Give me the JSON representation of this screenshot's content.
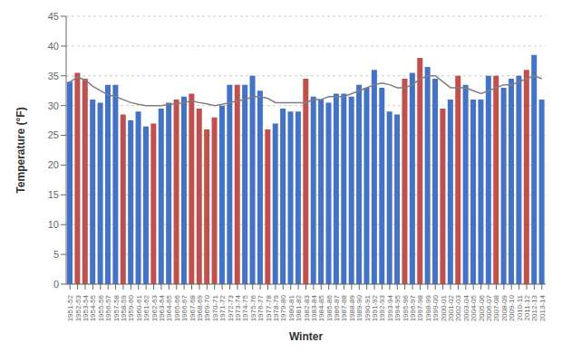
{
  "chart_data": {
    "type": "bar",
    "xlabel": "Winter",
    "ylabel": "Temperature (°F)",
    "categories": [
      "1951-52",
      "1952-53",
      "1953-54",
      "1954-55",
      "1955-56",
      "1956-57",
      "1957-58",
      "1958-59",
      "1959-60",
      "1960-61",
      "1961-62",
      "1962-63",
      "1963-64",
      "1964-65",
      "1965-66",
      "1966-67",
      "1967-68",
      "1968-69",
      "1969-70",
      "1970-71",
      "1971-72",
      "1972-73",
      "1973-74",
      "1974-75",
      "1975-76",
      "1976-77",
      "1977-78",
      "1978-79",
      "1979-80",
      "1980-81",
      "1981-82",
      "1982-83",
      "1983-84",
      "1984-85",
      "1985-86",
      "1986-87",
      "1987-88",
      "1988-89",
      "1989-90",
      "1990-91",
      "1991-92",
      "1992-93",
      "1993-94",
      "1994-95",
      "1995-96",
      "1996-97",
      "1997-98",
      "1998-99",
      "1999-00",
      "2000-01",
      "2001-02",
      "2002-03",
      "2003-04",
      "2004-05",
      "2005-06",
      "2006-07",
      "2007-08",
      "2008-09",
      "2009-10",
      "2010-11",
      "2011-12",
      "2012-13",
      "2013-14"
    ],
    "series": [
      {
        "type": "bar",
        "values": [
          34.0,
          35.5,
          34.5,
          31.0,
          30.5,
          33.5,
          33.5,
          28.5,
          27.5,
          29.0,
          26.5,
          27.0,
          29.5,
          30.5,
          31.0,
          31.5,
          32.0,
          29.5,
          26.0,
          28.0,
          30.0,
          33.5,
          33.5,
          33.5,
          35.0,
          32.5,
          26.0,
          27.0,
          29.5,
          29.0,
          29.0,
          34.5,
          31.5,
          31.0,
          30.5,
          32.0,
          32.0,
          31.5,
          33.5,
          33.0,
          36.0,
          33.0,
          29.0,
          28.5,
          34.5,
          35.5,
          38.0,
          36.5,
          34.5,
          29.5,
          31.0,
          35.0,
          33.5,
          31.0,
          31.0,
          35.0,
          35.0,
          33.0,
          34.5,
          35.0,
          36.0,
          38.5,
          31.0
        ],
        "colors": [
          "#4472C4",
          "#C0504D",
          "#C0504D",
          "#4472C4",
          "#4472C4",
          "#4472C4",
          "#4472C4",
          "#C0504D",
          "#4472C4",
          "#4472C4",
          "#4472C4",
          "#C0504D",
          "#4472C4",
          "#4472C4",
          "#C0504D",
          "#4472C4",
          "#C0504D",
          "#C0504D",
          "#C0504D",
          "#C0504D",
          "#4472C4",
          "#4472C4",
          "#C0504D",
          "#4472C4",
          "#4472C4",
          "#4472C4",
          "#C0504D",
          "#4472C4",
          "#4472C4",
          "#4472C4",
          "#4472C4",
          "#C0504D",
          "#4472C4",
          "#4472C4",
          "#4472C4",
          "#4472C4",
          "#4472C4",
          "#4472C4",
          "#4472C4",
          "#4472C4",
          "#4472C4",
          "#4472C4",
          "#4472C4",
          "#4472C4",
          "#C0504D",
          "#4472C4",
          "#C0504D",
          "#4472C4",
          "#4472C4",
          "#C0504D",
          "#4472C4",
          "#C0504D",
          "#4472C4",
          "#4472C4",
          "#4472C4",
          "#4472C4",
          "#C0504D",
          "#4472C4",
          "#4472C4",
          "#4472C4",
          "#C0504D",
          "#4472C4",
          "#4472C4"
        ]
      },
      {
        "type": "line",
        "color": "#7F7F7F",
        "values": [
          34.0,
          34.75,
          34.33,
          33.25,
          32.5,
          31.8,
          31.5,
          31.0,
          30.5,
          30.2,
          30.0,
          30.0,
          30.0,
          30.2,
          30.3,
          30.5,
          30.8,
          30.5,
          30.3,
          30.0,
          30.2,
          30.5,
          30.8,
          31.0,
          31.5,
          31.5,
          31.2,
          30.5,
          30.5,
          30.5,
          30.5,
          30.5,
          31.0,
          31.0,
          31.5,
          31.5,
          31.5,
          32.0,
          32.5,
          33.0,
          33.5,
          33.8,
          33.5,
          33.0,
          33.0,
          33.5,
          34.5,
          35.0,
          35.0,
          34.0,
          33.0,
          33.0,
          33.0,
          32.5,
          32.0,
          32.5,
          33.0,
          33.5,
          33.5,
          34.0,
          34.5,
          35.0,
          34.5
        ]
      }
    ],
    "ylim": [
      0,
      45
    ],
    "yticks": [
      0,
      5,
      10,
      15,
      20,
      25,
      30,
      35,
      40,
      45
    ],
    "grid": "y"
  }
}
